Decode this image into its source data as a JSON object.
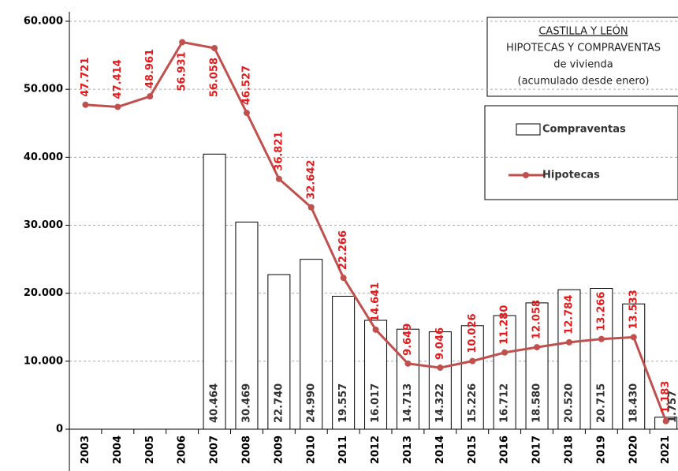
{
  "chart_data": {
    "type": "bar-line",
    "title": [
      "CASTILLA Y LEÓN",
      "HIPOTECAS Y COMPRAVENTAS",
      "de vivienda",
      "(acumulado desde enero)"
    ],
    "categories": [
      "2003",
      "2004",
      "2005",
      "2006",
      "2007",
      "2008",
      "2009",
      "2010",
      "2011",
      "2012",
      "2013",
      "2014",
      "2015",
      "2016",
      "2017",
      "2018",
      "2019",
      "2020",
      "2021"
    ],
    "series": [
      {
        "name": "Compraventas",
        "type": "bar",
        "color": "#ffffff",
        "edge": "#000000",
        "values": [
          null,
          null,
          null,
          null,
          40464,
          30469,
          22740,
          24990,
          19557,
          16017,
          14713,
          14322,
          15226,
          16712,
          18580,
          20520,
          20715,
          18430,
          1757
        ],
        "value_labels": [
          null,
          null,
          null,
          null,
          "40.464",
          "30.469",
          "22.740",
          "24.990",
          "19.557",
          "16.017",
          "14.713",
          "14.322",
          "15.226",
          "16.712",
          "18.580",
          "20.520",
          "20.715",
          "18.430",
          "1.757"
        ]
      },
      {
        "name": "Hipotecas",
        "type": "line",
        "color": "#c0504d",
        "label_color": "#e41a1c",
        "values": [
          47721,
          47414,
          48961,
          56931,
          56058,
          46527,
          36821,
          32642,
          22266,
          14641,
          9649,
          9046,
          10026,
          11280,
          12058,
          12784,
          13266,
          13533,
          1183
        ],
        "value_labels": [
          "47.721",
          "47.414",
          "48.961",
          "56.931",
          "56.058",
          "46.527",
          "36.821",
          "32.642",
          "22.266",
          "14.641",
          "9.649",
          "9.046",
          "10.026",
          "11.280",
          "12.058",
          "12.784",
          "13.266",
          "13.533",
          "1.183"
        ]
      }
    ],
    "ylim": [
      0,
      60000
    ],
    "yticks": [
      0,
      {
        "value": 10000,
        "label": "10.000"
      },
      {
        "value": 20000,
        "label": "20.000"
      },
      {
        "value": 30000,
        "label": "30.000"
      },
      {
        "value": 40000,
        "label": "40.000"
      },
      {
        "value": 50000,
        "label": "50.000"
      },
      {
        "value": 60000,
        "label": "60.000"
      }
    ],
    "grid": true
  }
}
